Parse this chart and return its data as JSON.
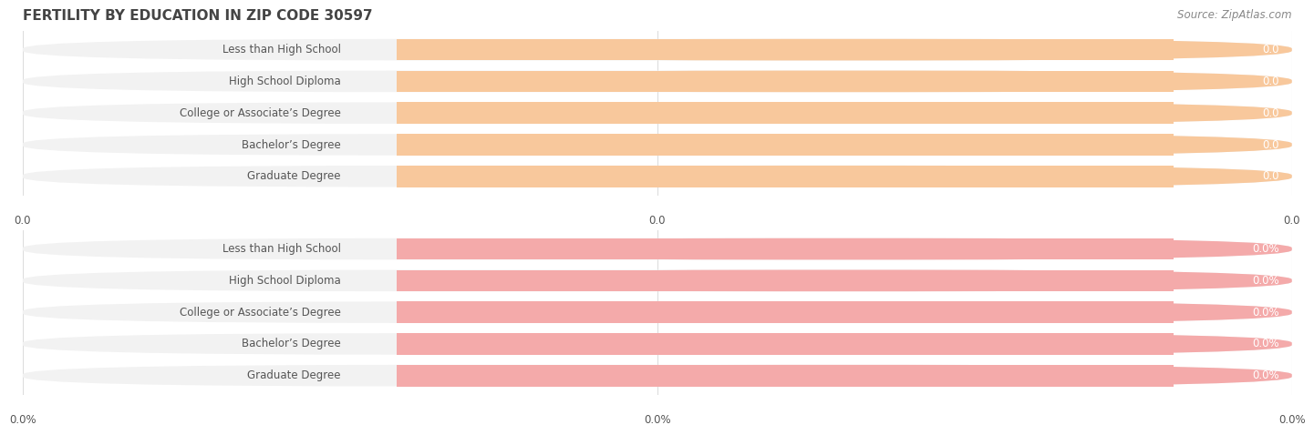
{
  "title": "FERTILITY BY EDUCATION IN ZIP CODE 30597",
  "source": "Source: ZipAtlas.com",
  "categories": [
    "Less than High School",
    "High School Diploma",
    "College or Associate’s Degree",
    "Bachelor’s Degree",
    "Graduate Degree"
  ],
  "values_top": [
    0.0,
    0.0,
    0.0,
    0.0,
    0.0
  ],
  "values_bottom": [
    0.0,
    0.0,
    0.0,
    0.0,
    0.0
  ],
  "bar_color_top": "#F8C89C",
  "bar_bg_color_top": "#F2F2F2",
  "bar_color_bottom": "#F4AAAA",
  "bar_bg_color_bottom": "#F2F2F2",
  "value_label_top": [
    "0.0",
    "0.0",
    "0.0",
    "0.0",
    "0.0"
  ],
  "value_label_bottom": [
    "0.0%",
    "0.0%",
    "0.0%",
    "0.0%",
    "0.0%"
  ],
  "x_tick_labels_top": [
    "0.0",
    "0.0",
    "0.0"
  ],
  "x_tick_labels_bottom": [
    "0.0%",
    "0.0%",
    "0.0%"
  ],
  "bg_color": "#FFFFFF",
  "title_fontsize": 11,
  "bar_height": 0.68,
  "text_color": "#555555",
  "value_text_color": "#FFFFFF",
  "grid_color": "#DDDDDD",
  "source_color": "#888888"
}
